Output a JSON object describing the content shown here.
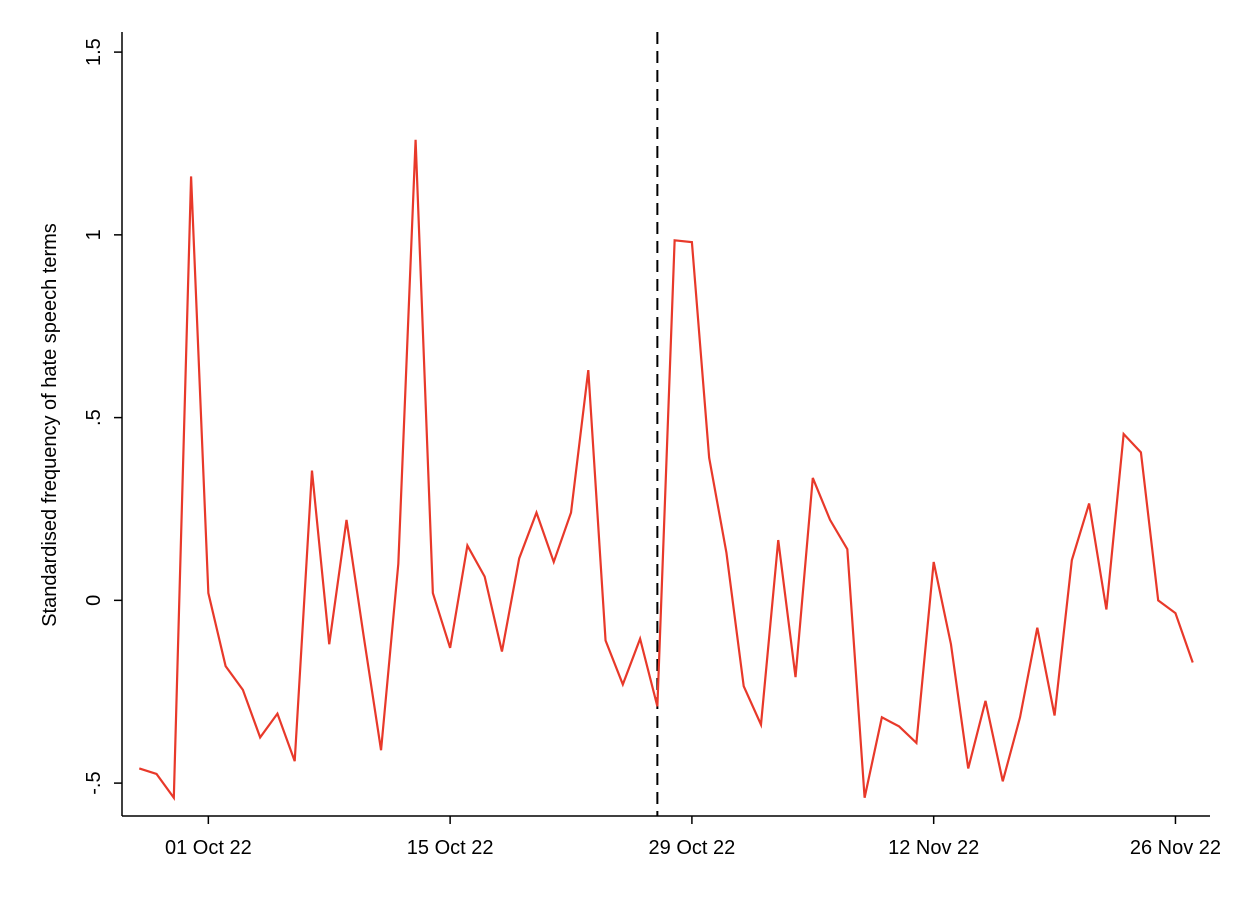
{
  "chart_data": {
    "type": "line",
    "y_label": "Standardised frequency of hate speech terms",
    "x": [
      "27 Sep 22",
      "28 Sep 22",
      "29 Sep 22",
      "30 Sep 22",
      "01 Oct 22",
      "02 Oct 22",
      "03 Oct 22",
      "04 Oct 22",
      "05 Oct 22",
      "06 Oct 22",
      "07 Oct 22",
      "08 Oct 22",
      "09 Oct 22",
      "10 Oct 22",
      "11 Oct 22",
      "12 Oct 22",
      "13 Oct 22",
      "14 Oct 22",
      "15 Oct 22",
      "16 Oct 22",
      "17 Oct 22",
      "18 Oct 22",
      "19 Oct 22",
      "20 Oct 22",
      "21 Oct 22",
      "22 Oct 22",
      "23 Oct 22",
      "24 Oct 22",
      "25 Oct 22",
      "26 Oct 22",
      "27 Oct 22",
      "28 Oct 22",
      "29 Oct 22",
      "30 Oct 22",
      "31 Oct 22",
      "01 Nov 22",
      "02 Nov 22",
      "03 Nov 22",
      "04 Nov 22",
      "05 Nov 22",
      "06 Nov 22",
      "07 Nov 22",
      "08 Nov 22",
      "09 Nov 22",
      "10 Nov 22",
      "11 Nov 22",
      "12 Nov 22",
      "13 Nov 22",
      "14 Nov 22",
      "15 Nov 22",
      "16 Nov 22",
      "17 Nov 22",
      "18 Nov 22",
      "19 Nov 22",
      "20 Nov 22",
      "21 Nov 22",
      "22 Nov 22",
      "23 Nov 22",
      "24 Nov 22",
      "25 Nov 22",
      "26 Nov 22",
      "27 Nov 22"
    ],
    "series": [
      {
        "color": "#e8392a",
        "values": [
          -0.46,
          -0.475,
          -0.54,
          1.16,
          0.02,
          -0.18,
          -0.245,
          -0.375,
          -0.31,
          -0.44,
          0.355,
          -0.12,
          0.22,
          -0.1,
          -0.41,
          0.1,
          1.26,
          0.02,
          -0.13,
          0.15,
          0.065,
          -0.14,
          0.115,
          0.24,
          0.105,
          0.24,
          0.63,
          -0.11,
          -0.23,
          -0.105,
          -0.29,
          0.985,
          0.98,
          0.39,
          0.13,
          -0.235,
          -0.34,
          0.165,
          -0.21,
          0.335,
          0.22,
          0.14,
          -0.54,
          -0.32,
          -0.345,
          -0.39,
          0.105,
          -0.12,
          -0.46,
          -0.275,
          -0.495,
          -0.32,
          -0.075,
          -0.315,
          0.11,
          0.265,
          -0.025,
          0.455,
          0.405,
          0.0,
          -0.035,
          -0.17
        ]
      }
    ],
    "xlim": [
      "26 Sep 22",
      "28 Nov 22"
    ],
    "xticks": [
      "01 Oct 22",
      "15 Oct 22",
      "29 Oct 22",
      "12 Nov 22",
      "26 Nov 22"
    ],
    "ylim": [
      -0.59,
      1.555
    ],
    "yticks": [
      {
        "value": -0.5,
        "label": "-.5"
      },
      0,
      {
        "value": 0.5,
        "label": ".5"
      },
      1,
      1.5
    ],
    "vline": "27 Oct 22"
  }
}
